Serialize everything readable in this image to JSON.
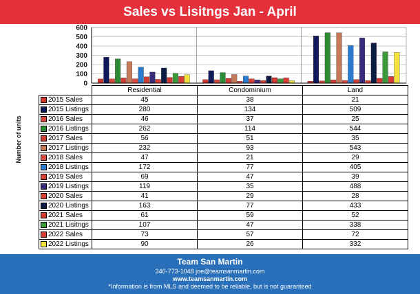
{
  "title": "Sales vs Lisitngs Jan - April",
  "footer": {
    "company": "Team San Martin",
    "contact": "340-773-1048     joe@teamsanmartin.com",
    "website": "www.teamsanmartin.com",
    "disclaimer": "*Information is from MLS and deemed to be reliable, but is not guaranteed"
  },
  "chart_data": {
    "type": "bar",
    "title": "Sales vs Lisitngs Jan - April",
    "ylabel": "Number of units",
    "xlabel": "",
    "ylim": [
      0,
      600
    ],
    "yticks": [
      0,
      100,
      200,
      300,
      400,
      500,
      600
    ],
    "grid": true,
    "legend": "table",
    "categories": [
      "Residential",
      "Condominium",
      "Land"
    ],
    "series": [
      {
        "name": "2015 Sales",
        "color": "#d2382d",
        "values": [
          45,
          38,
          21
        ]
      },
      {
        "name": "2015 Listings",
        "color": "#101a5a",
        "values": [
          280,
          134,
          509
        ]
      },
      {
        "name": "2016 Sales",
        "color": "#d84a3f",
        "values": [
          46,
          37,
          25
        ]
      },
      {
        "name": "2016 Listings",
        "color": "#2e8b35",
        "values": [
          262,
          114,
          544
        ]
      },
      {
        "name": "2017 Sales",
        "color": "#cf3c33",
        "values": [
          56,
          51,
          35
        ]
      },
      {
        "name": "2017 Listings",
        "color": "#c47a5a",
        "values": [
          232,
          93,
          543
        ]
      },
      {
        "name": "2018 Sales",
        "color": "#e04a40",
        "values": [
          47,
          21,
          29
        ]
      },
      {
        "name": "2018 Listings",
        "color": "#2a7bd0",
        "values": [
          172,
          77,
          405
        ]
      },
      {
        "name": "2019 Sales",
        "color": "#d63f36",
        "values": [
          69,
          47,
          39
        ]
      },
      {
        "name": "2019 Listings",
        "color": "#3a2c7a",
        "values": [
          119,
          35,
          488
        ]
      },
      {
        "name": "2020 Sales",
        "color": "#dd4236",
        "values": [
          41,
          29,
          28
        ]
      },
      {
        "name": "2020 Listings",
        "color": "#0d1c44",
        "values": [
          163,
          77,
          433
        ]
      },
      {
        "name": "2021 Sales",
        "color": "#d23a31",
        "values": [
          61,
          59,
          52
        ]
      },
      {
        "name": "2021 Lisitngs",
        "color": "#3d9a3c",
        "values": [
          107,
          47,
          338
        ]
      },
      {
        "name": "2022 Sales",
        "color": "#db3c34",
        "values": [
          73,
          57,
          72
        ]
      },
      {
        "name": "2022 Listings",
        "color": "#f6e23c",
        "values": [
          90,
          26,
          332
        ]
      }
    ]
  }
}
